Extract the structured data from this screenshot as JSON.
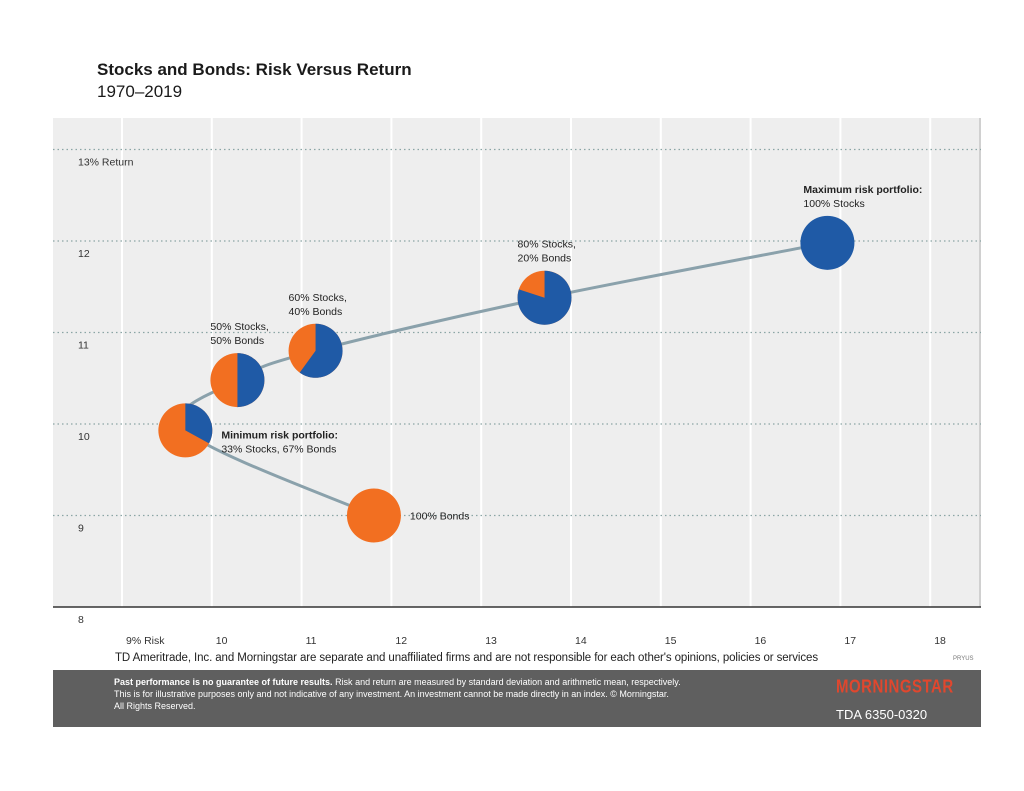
{
  "header": {
    "title": "Stocks and Bonds: Risk Versus Return",
    "subtitle": "1970–2019"
  },
  "chart_data": {
    "type": "scatter",
    "title": "Stocks and Bonds: Risk Versus Return",
    "subtitle": "1970–2019",
    "xlim": [
      8.4,
      18.5
    ],
    "ylim": [
      8,
      13.2
    ],
    "x_ticks": [
      {
        "value": 9,
        "label": "9% Risk"
      },
      {
        "value": 10,
        "label": "10"
      },
      {
        "value": 11,
        "label": "11"
      },
      {
        "value": 12,
        "label": "12"
      },
      {
        "value": 13,
        "label": "13"
      },
      {
        "value": 14,
        "label": "14"
      },
      {
        "value": 15,
        "label": "15"
      },
      {
        "value": 16,
        "label": "16"
      },
      {
        "value": 17,
        "label": "17"
      },
      {
        "value": 18,
        "label": "18"
      }
    ],
    "y_ticks": [
      {
        "value": 8,
        "label": "8"
      },
      {
        "value": 9,
        "label": "9"
      },
      {
        "value": 10,
        "label": "10"
      },
      {
        "value": 11,
        "label": "11"
      },
      {
        "value": 12,
        "label": "12"
      },
      {
        "value": 13,
        "label": "13% Return"
      }
    ],
    "grid": true,
    "colors": {
      "stocks": "#1f5aa6",
      "bonds": "#f26f21",
      "frontier": "#8aa1ab",
      "background": "#eeeeee",
      "grid": "#8aa5a5"
    },
    "points": [
      {
        "name": "100% Bonds",
        "risk": 11.85,
        "return": 9.0,
        "stocks_pct": 0,
        "label_lines": [
          "100% Bonds"
        ],
        "label_bold": false,
        "label_side": "right"
      },
      {
        "name": "Minimum risk portfolio",
        "risk": 9.75,
        "return": 9.93,
        "stocks_pct": 33,
        "label_lines": [
          "Minimum risk portfolio:",
          "33% Stocks, 67% Bonds"
        ],
        "label_bold": true,
        "label_side": "right"
      },
      {
        "name": "50% Stocks, 50% Bonds",
        "risk": 10.33,
        "return": 10.48,
        "stocks_pct": 50,
        "label_lines": [
          "50% Stocks,",
          "50% Bonds"
        ],
        "label_bold": false,
        "label_side": "above"
      },
      {
        "name": "60% Stocks, 40% Bonds",
        "risk": 11.2,
        "return": 10.8,
        "stocks_pct": 60,
        "label_lines": [
          "60% Stocks,",
          "40% Bonds"
        ],
        "label_bold": false,
        "label_side": "above"
      },
      {
        "name": "80% Stocks, 20% Bonds",
        "risk": 13.75,
        "return": 11.38,
        "stocks_pct": 80,
        "label_lines": [
          "80% Stocks,",
          "20% Bonds"
        ],
        "label_bold": false,
        "label_side": "above"
      },
      {
        "name": "Maximum risk portfolio",
        "risk": 16.9,
        "return": 11.98,
        "stocks_pct": 100,
        "label_lines": [
          "Maximum risk portfolio:",
          "100% Stocks"
        ],
        "label_bold": true,
        "label_side": "above"
      }
    ]
  },
  "disclaimer": "TD Ameritrade, Inc. and Morningstar are separate and unaffiliated firms and are not responsible for each other's opinions, policies or services",
  "code_small": "PRYUS",
  "footer": {
    "bold_lead": "Past performance is no guarantee of future results.",
    "text_1": " Risk and return are measured by standard deviation and arithmetic mean, respectively.",
    "text_2": "This is for illustrative purposes only and not indicative of any investment. An investment cannot be made directly in an index. © Morningstar.",
    "text_3": "All Rights Reserved.",
    "logo": "MORNINGSTAR",
    "doc_code": "TDA 6350-0320"
  }
}
